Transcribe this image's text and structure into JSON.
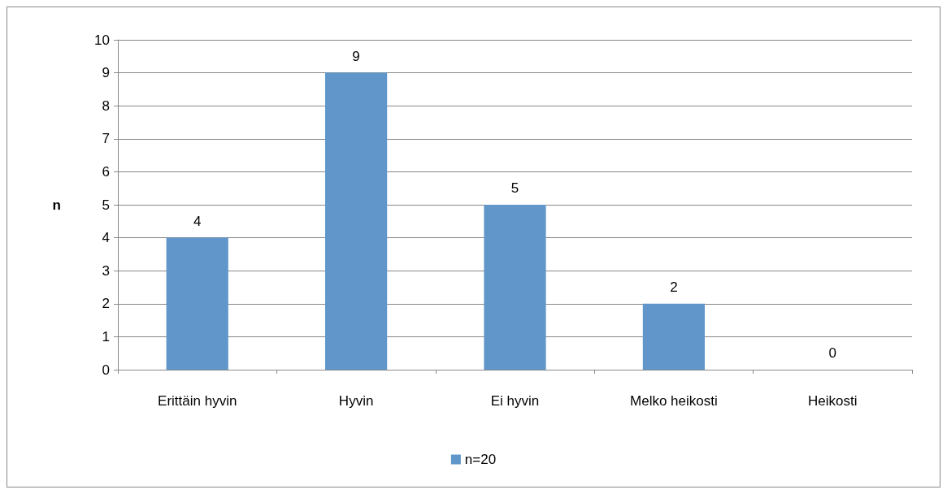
{
  "chart_data": {
    "type": "bar",
    "ylabel": "n",
    "categories": [
      "Erittäin hyvin",
      "Hyvin",
      "Ei hyvin",
      "Melko heikosti",
      "Heikosti"
    ],
    "series": [
      {
        "name": "n=20",
        "color": "#6096c9",
        "values": [
          4,
          9,
          5,
          2,
          0
        ]
      }
    ],
    "ylim": [
      0,
      10
    ],
    "yticks": [
      0,
      1,
      2,
      3,
      4,
      5,
      6,
      7,
      8,
      9,
      10
    ],
    "grid": "y",
    "legend": "bottom",
    "data_labels": true
  }
}
